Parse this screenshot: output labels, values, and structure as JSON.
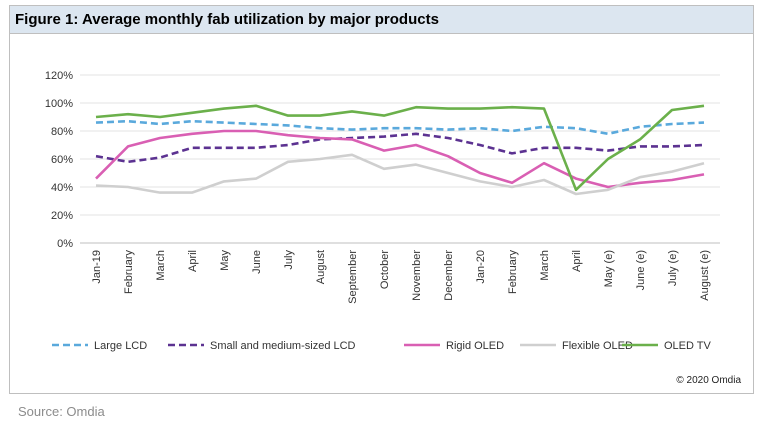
{
  "figure_title": "Figure 1: Average monthly fab utilization by major products",
  "copyright": "© 2020 Omdia",
  "source": "Source: Omdia",
  "chart_data": {
    "type": "line",
    "title": "Figure 1: Average monthly fab utilization by major products",
    "xlabel": "",
    "ylabel": "",
    "categories": [
      "Jan-19",
      "February",
      "March",
      "April",
      "May",
      "June",
      "July",
      "August",
      "September",
      "October",
      "November",
      "December",
      "Jan-20",
      "February",
      "March",
      "April",
      "May (e)",
      "June (e)",
      "July (e)",
      "August (e)"
    ],
    "y_ticks": [
      "0%",
      "20%",
      "40%",
      "60%",
      "80%",
      "100%",
      "120%"
    ],
    "ylim": [
      0,
      120
    ],
    "grid": "horizontal",
    "legend_position": "bottom",
    "series": [
      {
        "name": "Large LCD",
        "color": "#5aa9dc",
        "dash": "dashed",
        "values": [
          86,
          87,
          85,
          87,
          86,
          85,
          84,
          82,
          81,
          82,
          82,
          81,
          82,
          80,
          83,
          82,
          78,
          83,
          85,
          86
        ]
      },
      {
        "name": "Small and medium-sized LCD",
        "color": "#5c3291",
        "dash": "dashed",
        "values": [
          62,
          58,
          61,
          68,
          68,
          68,
          70,
          74,
          75,
          76,
          78,
          75,
          70,
          64,
          68,
          68,
          66,
          69,
          69,
          70
        ]
      },
      {
        "name": "Rigid OLED",
        "color": "#d95fb3",
        "dash": "solid",
        "values": [
          46,
          69,
          75,
          78,
          80,
          80,
          77,
          75,
          74,
          66,
          70,
          62,
          50,
          43,
          57,
          46,
          40,
          43,
          45,
          49
        ]
      },
      {
        "name": "Flexible OLED",
        "color": "#cfcfcf",
        "dash": "solid",
        "values": [
          41,
          40,
          36,
          36,
          44,
          46,
          58,
          60,
          63,
          53,
          56,
          50,
          44,
          40,
          45,
          35,
          38,
          47,
          51,
          57
        ]
      },
      {
        "name": "OLED TV",
        "color": "#6bb04b",
        "dash": "solid",
        "values": [
          90,
          92,
          90,
          93,
          96,
          98,
          91,
          91,
          94,
          91,
          97,
          96,
          96,
          97,
          96,
          38,
          60,
          74,
          95,
          98
        ]
      }
    ]
  }
}
